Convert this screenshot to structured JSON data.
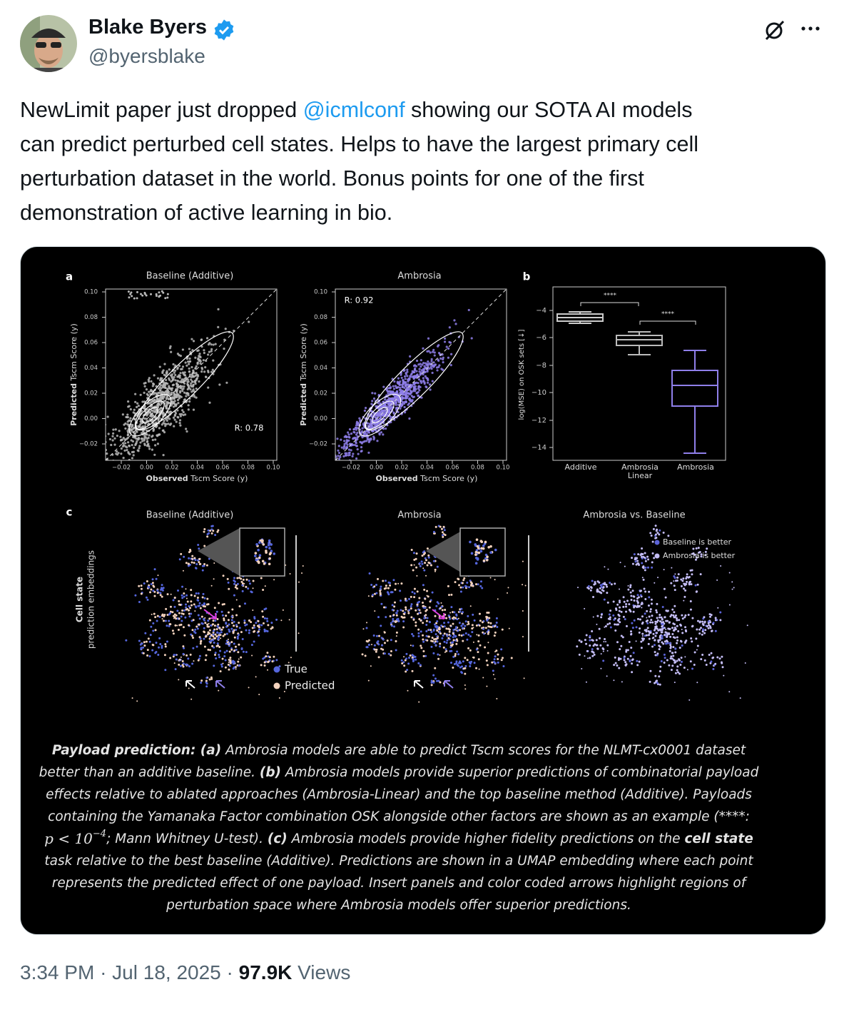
{
  "author": {
    "name": "Blake Byers",
    "handle": "@byersblake"
  },
  "text_lines": [
    [
      {
        "text": "NewLimit paper just dropped "
      },
      {
        "text": "@icmlconf",
        "style": "mention"
      },
      {
        "text": " showing our SOTA AI models"
      }
    ],
    [
      {
        "text": "can predict perturbed cell states. Helps to have the largest primary cell"
      }
    ],
    [
      {
        "text": "perturbation dataset in the world. Bonus points for one of the first"
      }
    ],
    [
      {
        "text": "demonstration of active learning in bio."
      }
    ]
  ],
  "figure": {
    "panel_a": {
      "label": "a",
      "plots": [
        {
          "title": "Baseline (Additive)",
          "r_label": "R: 0.78"
        },
        {
          "title": "Ambrosia",
          "r_label": "R: 0.92"
        }
      ],
      "y_label": {
        "bold": "Predicted",
        "rest": " Tscm Score (y)"
      },
      "x_label": {
        "bold": "Observed",
        "rest": " Tscm Score (y)"
      },
      "yticks": [
        "0.10",
        "0.08",
        "0.06",
        "0.04",
        "0.02",
        "0.00",
        "−0.02"
      ],
      "xticks": [
        "−0.02",
        "0.00",
        "0.02",
        "0.04",
        "0.06",
        "0.08",
        "0.10"
      ]
    },
    "panel_b": {
      "label": "b",
      "y_label": "log(MSE) on OSK sets [↓]",
      "yticks": [
        "−4",
        "−6",
        "−8",
        "−10",
        "−12",
        "−14"
      ],
      "categories": [
        [
          "Additive"
        ],
        [
          "Ambrosia",
          "Linear"
        ],
        [
          "Ambrosia"
        ]
      ],
      "significance": [
        "****",
        "****"
      ]
    },
    "panel_c": {
      "label": "c",
      "titles": [
        "Baseline (Additive)",
        "Ambrosia",
        "Ambrosia vs. Baseline"
      ],
      "y_label": {
        "bold": "Cell state",
        "rest": "prediction embeddings"
      },
      "legend": [
        "True",
        "Predicted"
      ],
      "comparison_legend": [
        "Baseline is better",
        "Ambrosia is better"
      ]
    },
    "caption": [
      [
        {
          "text": "Payload prediction: (a)",
          "style": "bold"
        },
        {
          "text": " Ambrosia models are able to predict Tscm scores for the NLMT-cx0001 dataset"
        }
      ],
      [
        {
          "text": "better than an additive baseline. "
        },
        {
          "text": "(b)",
          "style": "bold"
        },
        {
          "text": " Ambrosia models provide superior predictions of combinatorial payload"
        }
      ],
      [
        {
          "text": "effects relative to ablated approaches (Ambrosia-Linear) and the top baseline method (Additive). Payloads"
        }
      ],
      [
        {
          "text": "containing the Yamanaka Factor combination OSK alongside other factors are shown as an example (****:"
        }
      ],
      [
        {
          "text": "p < 10",
          "style": "math"
        },
        {
          "text": "−4",
          "style": "sup"
        },
        {
          "text": "; Mann Whitney U-test). "
        },
        {
          "text": "(c)",
          "style": "bold"
        },
        {
          "text": " Ambrosia models provide higher fidelity predictions on the "
        },
        {
          "text": "cell state",
          "style": "bold"
        }
      ],
      [
        {
          "text": "task relative to the best baseline (Additive). Predictions are shown in a UMAP embedding where each point"
        }
      ],
      [
        {
          "text": "represents the predicted effect of one payload. Insert panels and color coded arrows highlight regions of"
        }
      ],
      [
        {
          "text": "perturbation space where Ambrosia models offer superior predictions."
        }
      ]
    ]
  },
  "footer": {
    "time": "3:34 PM",
    "separator": "·",
    "date": "Jul 18, 2025",
    "views_count": "97.9K",
    "views_label": "Views"
  }
}
